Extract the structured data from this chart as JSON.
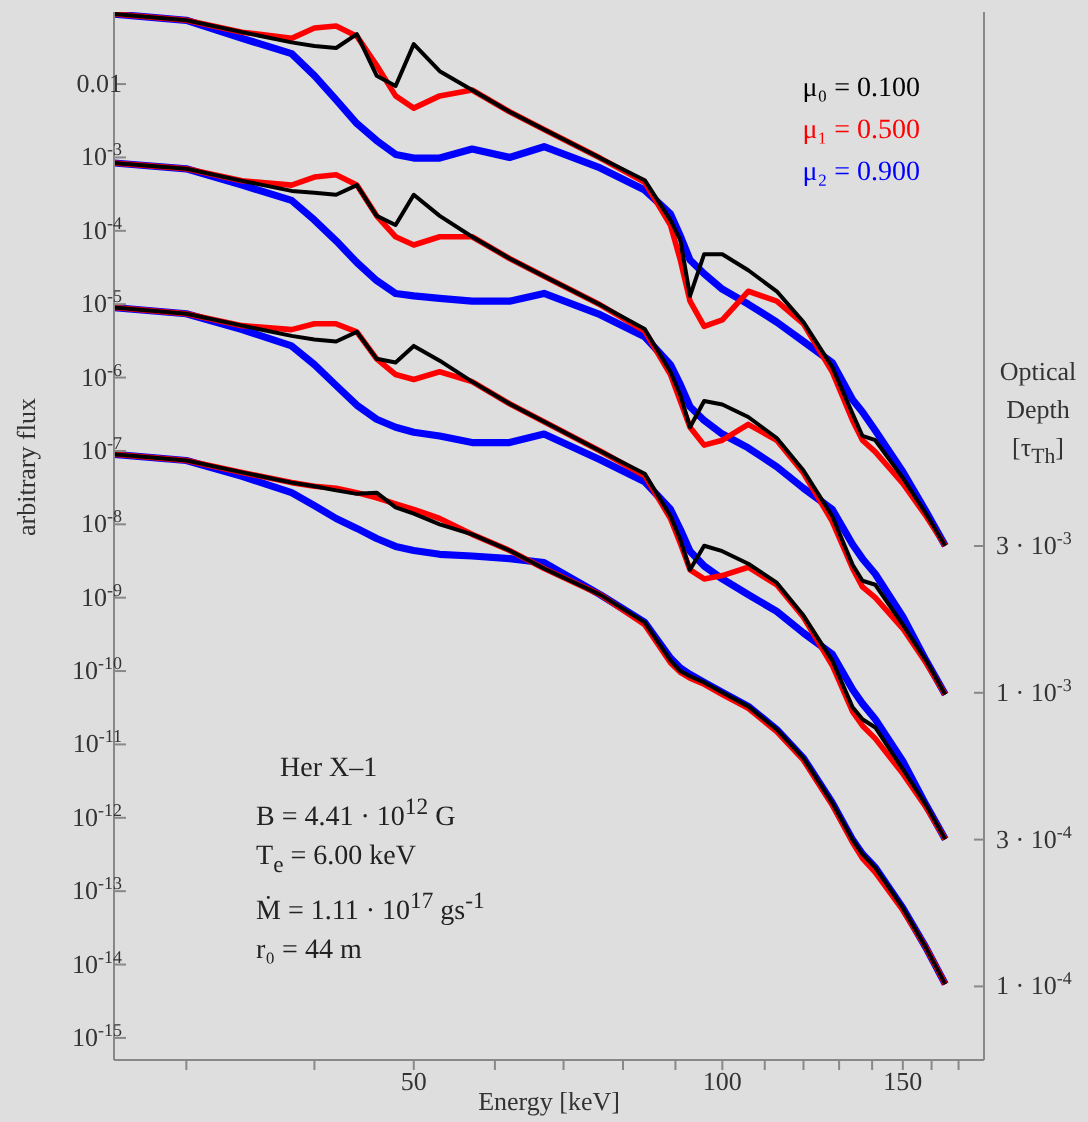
{
  "chart_data": {
    "type": "line",
    "xlabel": "Energy [keV]",
    "ylabel": "arbitrary flux",
    "y2label": "Optical Depth [τ$_{Th}$]",
    "log": "xy",
    "legend": "top right",
    "xlim": [
      25.5,
      180
    ],
    "xticks": [
      {
        "value": 30,
        "label": null
      },
      {
        "value": 40,
        "label": null
      },
      50,
      {
        "value": 60,
        "label": null
      },
      {
        "value": 70,
        "label": null
      },
      {
        "value": 80,
        "label": null
      },
      {
        "value": 90,
        "label": null
      },
      100,
      {
        "value": 110,
        "label": null
      },
      {
        "value": 120,
        "label": null
      },
      {
        "value": 130,
        "label": null
      },
      {
        "value": 140,
        "label": null
      },
      150,
      {
        "value": 160,
        "label": null
      },
      {
        "value": 170,
        "label": null
      }
    ],
    "ylim": [
      5e-16,
      0.096
    ],
    "yticks": [
      0.01,
      {
        "value": 0.001,
        "label": "10$^{-3}$"
      },
      {
        "value": 0.0001,
        "label": "10$^{-4}$"
      },
      {
        "value": 1e-05,
        "label": "10$^{-5}$"
      },
      {
        "value": 1e-06,
        "label": "10$^{-6}$"
      },
      {
        "value": 1e-07,
        "label": "10$^{-7}$"
      },
      {
        "value": 1e-08,
        "label": "10$^{-8}$"
      },
      {
        "value": 1e-09,
        "label": "10$^{-9}$"
      },
      {
        "value": 1e-10,
        "label": "10$^{-10}$"
      },
      {
        "value": 1e-11,
        "label": "10$^{-11}$"
      },
      {
        "value": 1e-12,
        "label": "10$^{-12}$"
      },
      {
        "value": 1e-13,
        "label": "10$^{-13}$"
      },
      {
        "value": 1e-14,
        "label": "10$^{-14}$"
      },
      {
        "value": 1e-15,
        "label": "10$^{-15}$"
      }
    ],
    "annotations": [
      "Her X–1",
      "B = 4.41 · 10$^{12}$ G",
      "T$_{e}$ = 6.00 keV",
      "Ṁ = 1.11 · 10$^{17}$ gs$^{-1}$",
      "r₀ = 44 m",
      "3 · 10$^{-3}$",
      "1 · 10$^{-3}$",
      "3 · 10$^{-4}$",
      "1 · 10$^{-4}$"
    ],
    "x": [
      25.5,
      30,
      34,
      38,
      40,
      42,
      44,
      46,
      48,
      50,
      53,
      57,
      62,
      67,
      76,
      84,
      89,
      91,
      93,
      96,
      100,
      106,
      113,
      120,
      128,
      134,
      137,
      141,
      150,
      158,
      165
    ],
    "series": [
      {
        "name": "μ₀ = 0.100",
        "color": "#000000",
        "values": [
          0.09,
          0.074,
          0.051,
          0.037,
          0.033,
          0.031,
          0.048,
          0.013,
          0.0094,
          0.035,
          0.015,
          0.0083,
          0.0042,
          0.0024,
          0.00098,
          0.00049,
          0.00014,
          7.5e-05,
          1.3e-05,
          4.8e-05,
          4.8e-05,
          2.9e-05,
          1.5e-05,
          5.7e-06,
          1.4e-06,
          3.2e-07,
          1.6e-07,
          1.4e-07,
          4.3e-08,
          1.4e-08,
          5.1e-09
        ]
      },
      {
        "name": "μ₁ = 0.500",
        "color": "#ff0000",
        "values": [
          0.09,
          0.074,
          0.051,
          0.042,
          0.058,
          0.062,
          0.045,
          0.018,
          0.0069,
          0.0047,
          0.0069,
          0.0083,
          0.0042,
          0.0024,
          0.00098,
          0.00046,
          0.00012,
          4e-05,
          1.1e-05,
          5e-06,
          6.1e-06,
          1.5e-05,
          1.1e-05,
          5.4e-06,
          1.2e-06,
          2.6e-07,
          1.4e-07,
          9.7e-08,
          3.6e-08,
          1.3e-08,
          5.1e-09
        ]
      },
      {
        "name": "μ₂ = 0.900",
        "color": "#0000ff",
        "values": [
          0.09,
          0.074,
          0.042,
          0.026,
          0.013,
          0.0061,
          0.0029,
          0.0017,
          0.0011,
          0.00098,
          0.00098,
          0.0013,
          0.001,
          0.0014,
          0.00072,
          0.00036,
          0.00017,
          8.5e-05,
          4e-05,
          2.6e-05,
          1.6e-05,
          1e-05,
          5.7e-06,
          3.1e-06,
          1.6e-06,
          5e-07,
          3.4e-07,
          1.9e-07,
          5.2e-08,
          1.5e-08,
          5.1e-09
        ]
      },
      {
        "color": "#000000",
        "values": [
          0.00084,
          0.0007,
          0.00048,
          0.00035,
          0.00033,
          0.00031,
          0.00042,
          0.00016,
          0.00012,
          0.00031,
          0.00016,
          8.3e-05,
          4.2e-05,
          2.4e-05,
          9.8e-06,
          4.6e-06,
          1.2e-06,
          5.8e-07,
          2.1e-07,
          4.8e-07,
          4.3e-07,
          2.9e-07,
          1.5e-07,
          5.4e-08,
          1.3e-08,
          2.8e-09,
          1.7e-09,
          1.5e-09,
          4.3e-10,
          1.4e-10,
          4.8e-11
        ]
      },
      {
        "color": "#ff0000",
        "values": [
          0.00084,
          0.0007,
          0.00048,
          0.00042,
          0.00054,
          0.00058,
          0.00042,
          0.00016,
          8.3e-05,
          6.4e-05,
          8.3e-05,
          8.3e-05,
          4.2e-05,
          2.4e-05,
          9.8e-06,
          4.3e-06,
          1.1e-06,
          4.8e-07,
          2.1e-07,
          1.2e-07,
          1.4e-07,
          2.3e-07,
          1.4e-07,
          5e-08,
          1.1e-08,
          2.5e-09,
          1.4e-09,
          1e-09,
          3.8e-10,
          1.3e-10,
          4.8e-11
        ]
      },
      {
        "color": "#0000ff",
        "values": [
          0.00084,
          0.0007,
          0.00042,
          0.00026,
          0.00014,
          7.3e-05,
          3.7e-05,
          2.1e-05,
          1.4e-05,
          1.3e-05,
          1.2e-05,
          1.1e-05,
          1.1e-05,
          1.4e-05,
          7.2e-06,
          3.6e-06,
          1.5e-06,
          8e-07,
          4e-07,
          2.6e-07,
          1.7e-07,
          1.1e-07,
          6.1e-08,
          3.1e-08,
          1.6e-08,
          5.3e-09,
          3.4e-09,
          2.1e-09,
          5.5e-10,
          1.4e-10,
          4.8e-11
        ]
      },
      {
        "color": "#000000",
        "values": [
          9e-06,
          7.4e-06,
          5.1e-06,
          3.7e-06,
          3.3e-06,
          3.1e-06,
          4.2e-06,
          1.8e-06,
          1.6e-06,
          2.7e-06,
          1.7e-06,
          8.8e-07,
          4.4e-07,
          2.5e-07,
          1e-07,
          4.9e-08,
          1.3e-08,
          6.2e-09,
          2.4e-09,
          5.1e-09,
          4.3e-09,
          2.9e-09,
          1.6e-09,
          5.7e-10,
          1.4e-10,
          3.2e-11,
          2.2e-11,
          1.7e-11,
          4.6e-12,
          1.5e-12,
          5.1e-13
        ]
      },
      {
        "color": "#ff0000",
        "values": [
          9e-06,
          7.4e-06,
          5.1e-06,
          4.5e-06,
          5.4e-06,
          5.4e-06,
          4.2e-06,
          1.8e-06,
          1.1e-06,
          9.4e-07,
          1.2e-06,
          8.8e-07,
          4.4e-07,
          2.5e-07,
          1e-07,
          4.6e-08,
          1.2e-08,
          5.5e-09,
          2.4e-09,
          1.8e-09,
          2e-09,
          2.6e-09,
          1.5e-09,
          5.4e-10,
          1.2e-10,
          2.8e-11,
          1.8e-11,
          1.2e-11,
          4e-12,
          1.4e-12,
          5.1e-13
        ]
      },
      {
        "color": "#0000ff",
        "values": [
          9e-06,
          7.4e-06,
          4.5e-06,
          2.7e-06,
          1.5e-06,
          7.8e-07,
          4.2e-07,
          2.7e-07,
          2.1e-07,
          1.8e-07,
          1.6e-07,
          1.3e-07,
          1.3e-07,
          1.7e-07,
          7.6e-08,
          3.8e-08,
          1.6e-08,
          8.5e-09,
          4.3e-09,
          2.7e-09,
          1.8e-09,
          1.1e-09,
          6.5e-10,
          3.3e-10,
          1.7e-10,
          5.6e-11,
          3.6e-11,
          2.2e-11,
          5.9e-12,
          1.5e-12,
          5.1e-13
        ]
      },
      {
        "color": "#000000",
        "values": [
          9e-08,
          7.4e-08,
          5.1e-08,
          3.7e-08,
          3.3e-08,
          2.9e-08,
          2.6e-08,
          2.7e-08,
          1.7e-08,
          1.4e-08,
          1e-08,
          7.3e-09,
          4.4e-09,
          2.5e-09,
          1.1e-09,
          4.6e-10,
          1.4e-10,
          1e-10,
          8.5e-11,
          7e-11,
          5.1e-11,
          3.3e-11,
          1.6e-11,
          6.5e-12,
          1.6e-12,
          5e-13,
          3.2e-13,
          2.1e-13,
          5.9e-14,
          1.7e-14,
          5.4e-15
        ]
      },
      {
        "color": "#ff0000",
        "values": [
          9e-08,
          7.4e-08,
          5.1e-08,
          3.7e-08,
          3.3e-08,
          3.1e-08,
          2.7e-08,
          2.3e-08,
          1.9e-08,
          1.6e-08,
          1.2e-08,
          7.3e-09,
          4.4e-09,
          2.5e-09,
          1.1e-09,
          4.3e-10,
          1.3e-10,
          9.6e-11,
          8e-11,
          6.6e-11,
          4.8e-11,
          3.1e-11,
          1.5e-11,
          6.1e-12,
          1.5e-12,
          4.6e-13,
          2.8e-13,
          1.8e-13,
          5.5e-14,
          1.7e-14,
          5.4e-15
        ]
      },
      {
        "color": "#0000ff",
        "values": [
          9e-08,
          7.4e-08,
          4.5e-08,
          2.7e-08,
          1.8e-08,
          1.2e-08,
          8.8e-09,
          6.4e-09,
          5e-09,
          4.4e-09,
          3.9e-09,
          3.7e-09,
          3.4e-09,
          3e-09,
          1.1e-09,
          4.6e-10,
          1.5e-10,
          1.1e-10,
          9e-11,
          7e-11,
          5.1e-11,
          3.3e-11,
          1.6e-11,
          6.5e-12,
          1.6e-12,
          5e-13,
          3.2e-13,
          2.1e-13,
          5.9e-14,
          1.7e-14,
          5.4e-15
        ]
      }
    ]
  }
}
